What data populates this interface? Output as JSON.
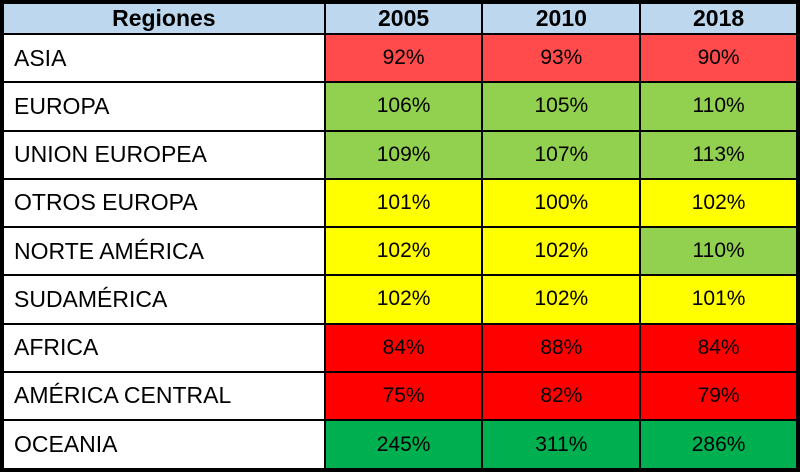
{
  "chart_data": {
    "type": "table",
    "title": "",
    "categories": [
      "ASIA",
      "EUROPA",
      "UNION EUROPEA",
      "OTROS EUROPA",
      "NORTE AMÉRICA",
      "SUDAMÉRICA",
      "AFRICA",
      "AMÉRICA CENTRAL",
      "OCEANIA"
    ],
    "series": [
      {
        "name": "2005",
        "values": [
          92,
          106,
          109,
          101,
          102,
          102,
          84,
          75,
          245
        ]
      },
      {
        "name": "2010",
        "values": [
          93,
          105,
          107,
          100,
          102,
          102,
          88,
          82,
          311
        ]
      },
      {
        "name": "2018",
        "values": [
          90,
          110,
          113,
          102,
          110,
          101,
          84,
          79,
          286
        ]
      }
    ],
    "unit": "%"
  },
  "table": {
    "header": {
      "region_label": "Regiones",
      "years": [
        "2005",
        "2010",
        "2018"
      ]
    },
    "palette": {
      "header_bg": "#BDD7EE",
      "light_red": "#FF4B4B",
      "red": "#FF0000",
      "light_green": "#92D050",
      "green": "#00B050",
      "yellow": "#FFFF00",
      "white": "#FFFFFF",
      "border": "#000000"
    },
    "rows": [
      {
        "region": "ASIA",
        "cells": [
          {
            "text": "92%",
            "color": "light_red"
          },
          {
            "text": "93%",
            "color": "light_red"
          },
          {
            "text": "90%",
            "color": "light_red"
          }
        ]
      },
      {
        "region": "EUROPA",
        "cells": [
          {
            "text": "106%",
            "color": "light_green"
          },
          {
            "text": "105%",
            "color": "light_green"
          },
          {
            "text": "110%",
            "color": "light_green"
          }
        ]
      },
      {
        "region": "UNION EUROPEA",
        "cells": [
          {
            "text": "109%",
            "color": "light_green"
          },
          {
            "text": "107%",
            "color": "light_green"
          },
          {
            "text": "113%",
            "color": "light_green"
          }
        ]
      },
      {
        "region": "OTROS EUROPA",
        "cells": [
          {
            "text": "101%",
            "color": "yellow"
          },
          {
            "text": "100%",
            "color": "yellow"
          },
          {
            "text": "102%",
            "color": "yellow"
          }
        ]
      },
      {
        "region": "NORTE AMÉRICA",
        "cells": [
          {
            "text": "102%",
            "color": "yellow"
          },
          {
            "text": "102%",
            "color": "yellow"
          },
          {
            "text": "110%",
            "color": "light_green"
          }
        ]
      },
      {
        "region": "SUDAMÉRICA",
        "cells": [
          {
            "text": "102%",
            "color": "yellow"
          },
          {
            "text": "102%",
            "color": "yellow"
          },
          {
            "text": "101%",
            "color": "yellow"
          }
        ]
      },
      {
        "region": "AFRICA",
        "cells": [
          {
            "text": "84%",
            "color": "red"
          },
          {
            "text": "88%",
            "color": "red"
          },
          {
            "text": "84%",
            "color": "red"
          }
        ]
      },
      {
        "region": "AMÉRICA CENTRAL",
        "cells": [
          {
            "text": "75%",
            "color": "red"
          },
          {
            "text": "82%",
            "color": "red"
          },
          {
            "text": "79%",
            "color": "red"
          }
        ]
      },
      {
        "region": "OCEANIA",
        "cells": [
          {
            "text": "245%",
            "color": "green"
          },
          {
            "text": "311%",
            "color": "green"
          },
          {
            "text": "286%",
            "color": "green"
          }
        ]
      }
    ]
  }
}
